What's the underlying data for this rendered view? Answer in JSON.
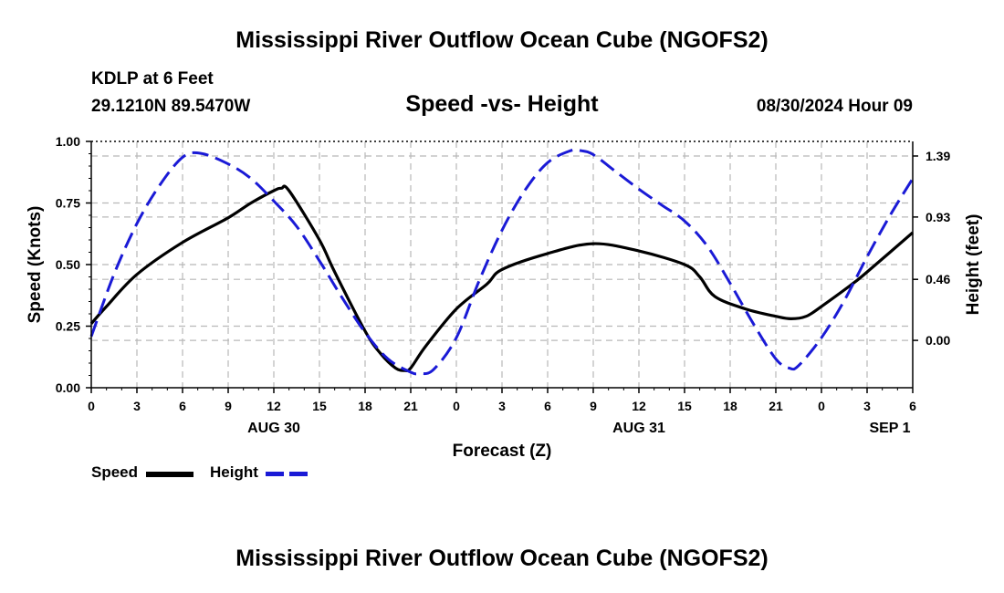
{
  "header": {
    "title": "Mississippi River Outflow Ocean Cube (NGOFS2)",
    "station": "KDLP at 6 Feet",
    "coords": "29.1210N  89.5470W",
    "subtitle": "Speed -vs- Height",
    "timestamp": "08/30/2024 Hour 09"
  },
  "footer": {
    "title": "Mississippi River Outflow Ocean Cube (NGOFS2)"
  },
  "legend": {
    "speed_label": "Speed",
    "height_label": "Height"
  },
  "colors": {
    "speed": "#000000",
    "height": "#1a1ad6",
    "grid": "#b8b8b8"
  },
  "chart_data": {
    "type": "line",
    "title": "Speed -vs- Height",
    "xlabel": "Forecast (Z)",
    "ylabel": "Speed (Knots)",
    "y2label": "Height (feet)",
    "xlim": [
      0,
      54
    ],
    "ylim": [
      0,
      1
    ],
    "y2lim": [
      -0.357,
      1.5
    ],
    "grid": true,
    "legend_position": "bottom-left",
    "x_ticks": [
      0,
      3,
      6,
      9,
      12,
      15,
      18,
      21,
      24,
      27,
      30,
      33,
      36,
      39,
      42,
      45,
      48,
      51,
      54
    ],
    "x_tick_labels": [
      "0",
      "3",
      "6",
      "9",
      "12",
      "15",
      "18",
      "21",
      "0",
      "3",
      "6",
      "9",
      "12",
      "15",
      "18",
      "21",
      "0",
      "3",
      "6"
    ],
    "date_labels": [
      {
        "x": 12,
        "label": "AUG 30"
      },
      {
        "x": 36,
        "label": "AUG 31"
      },
      {
        "x": 52.5,
        "label": "SEP 1"
      }
    ],
    "y_ticks": [
      0,
      0.25,
      0.5,
      0.75,
      1
    ],
    "y_tick_labels": [
      "0.00",
      "0.25",
      "0.50",
      "0.75",
      "1.00"
    ],
    "y2_ticks": [
      0,
      0.46,
      0.93,
      1.39
    ],
    "y2_tick_labels": [
      "0.00",
      "0.46",
      "0.93",
      "1.39"
    ],
    "series": [
      {
        "name": "Speed",
        "axis": "left",
        "style": "solid",
        "x": [
          0,
          1,
          3,
          6,
          9,
          10.5,
          12,
          12.5,
          13,
          15,
          16,
          18,
          19,
          20,
          20.6,
          21,
          22,
          24,
          26,
          27,
          30,
          33,
          36,
          39,
          40,
          41,
          43,
          45,
          46,
          47,
          48,
          50,
          51,
          54
        ],
        "values": [
          0.26,
          0.33,
          0.46,
          0.59,
          0.69,
          0.75,
          0.8,
          0.81,
          0.8,
          0.6,
          0.47,
          0.23,
          0.14,
          0.08,
          0.07,
          0.08,
          0.17,
          0.32,
          0.42,
          0.48,
          0.545,
          0.585,
          0.555,
          0.5,
          0.45,
          0.37,
          0.32,
          0.29,
          0.28,
          0.29,
          0.33,
          0.42,
          0.47,
          0.63
        ]
      },
      {
        "name": "Height",
        "axis": "right",
        "style": "dashed",
        "x": [
          0,
          1.5,
          3,
          4.5,
          6,
          7.2,
          9,
          10.5,
          12,
          13.5,
          15,
          16.5,
          18,
          19.5,
          21,
          21.6,
          22.5,
          24,
          25.5,
          27,
          28.5,
          30,
          31.5,
          32.2,
          33,
          34.5,
          36,
          37.5,
          39,
          40.5,
          42,
          43.5,
          45,
          45.9,
          46.5,
          48,
          49.5,
          51,
          52.5,
          54
        ],
        "values": [
          0.03,
          0.5,
          0.88,
          1.17,
          1.38,
          1.41,
          1.33,
          1.22,
          1.05,
          0.86,
          0.6,
          0.32,
          0.06,
          -0.14,
          -0.24,
          -0.25,
          -0.22,
          0.02,
          0.45,
          0.83,
          1.13,
          1.34,
          1.43,
          1.43,
          1.4,
          1.27,
          1.14,
          1.02,
          0.9,
          0.71,
          0.43,
          0.13,
          -0.14,
          -0.21,
          -0.19,
          0.02,
          0.3,
          0.63,
          0.94,
          1.22
        ]
      }
    ]
  }
}
